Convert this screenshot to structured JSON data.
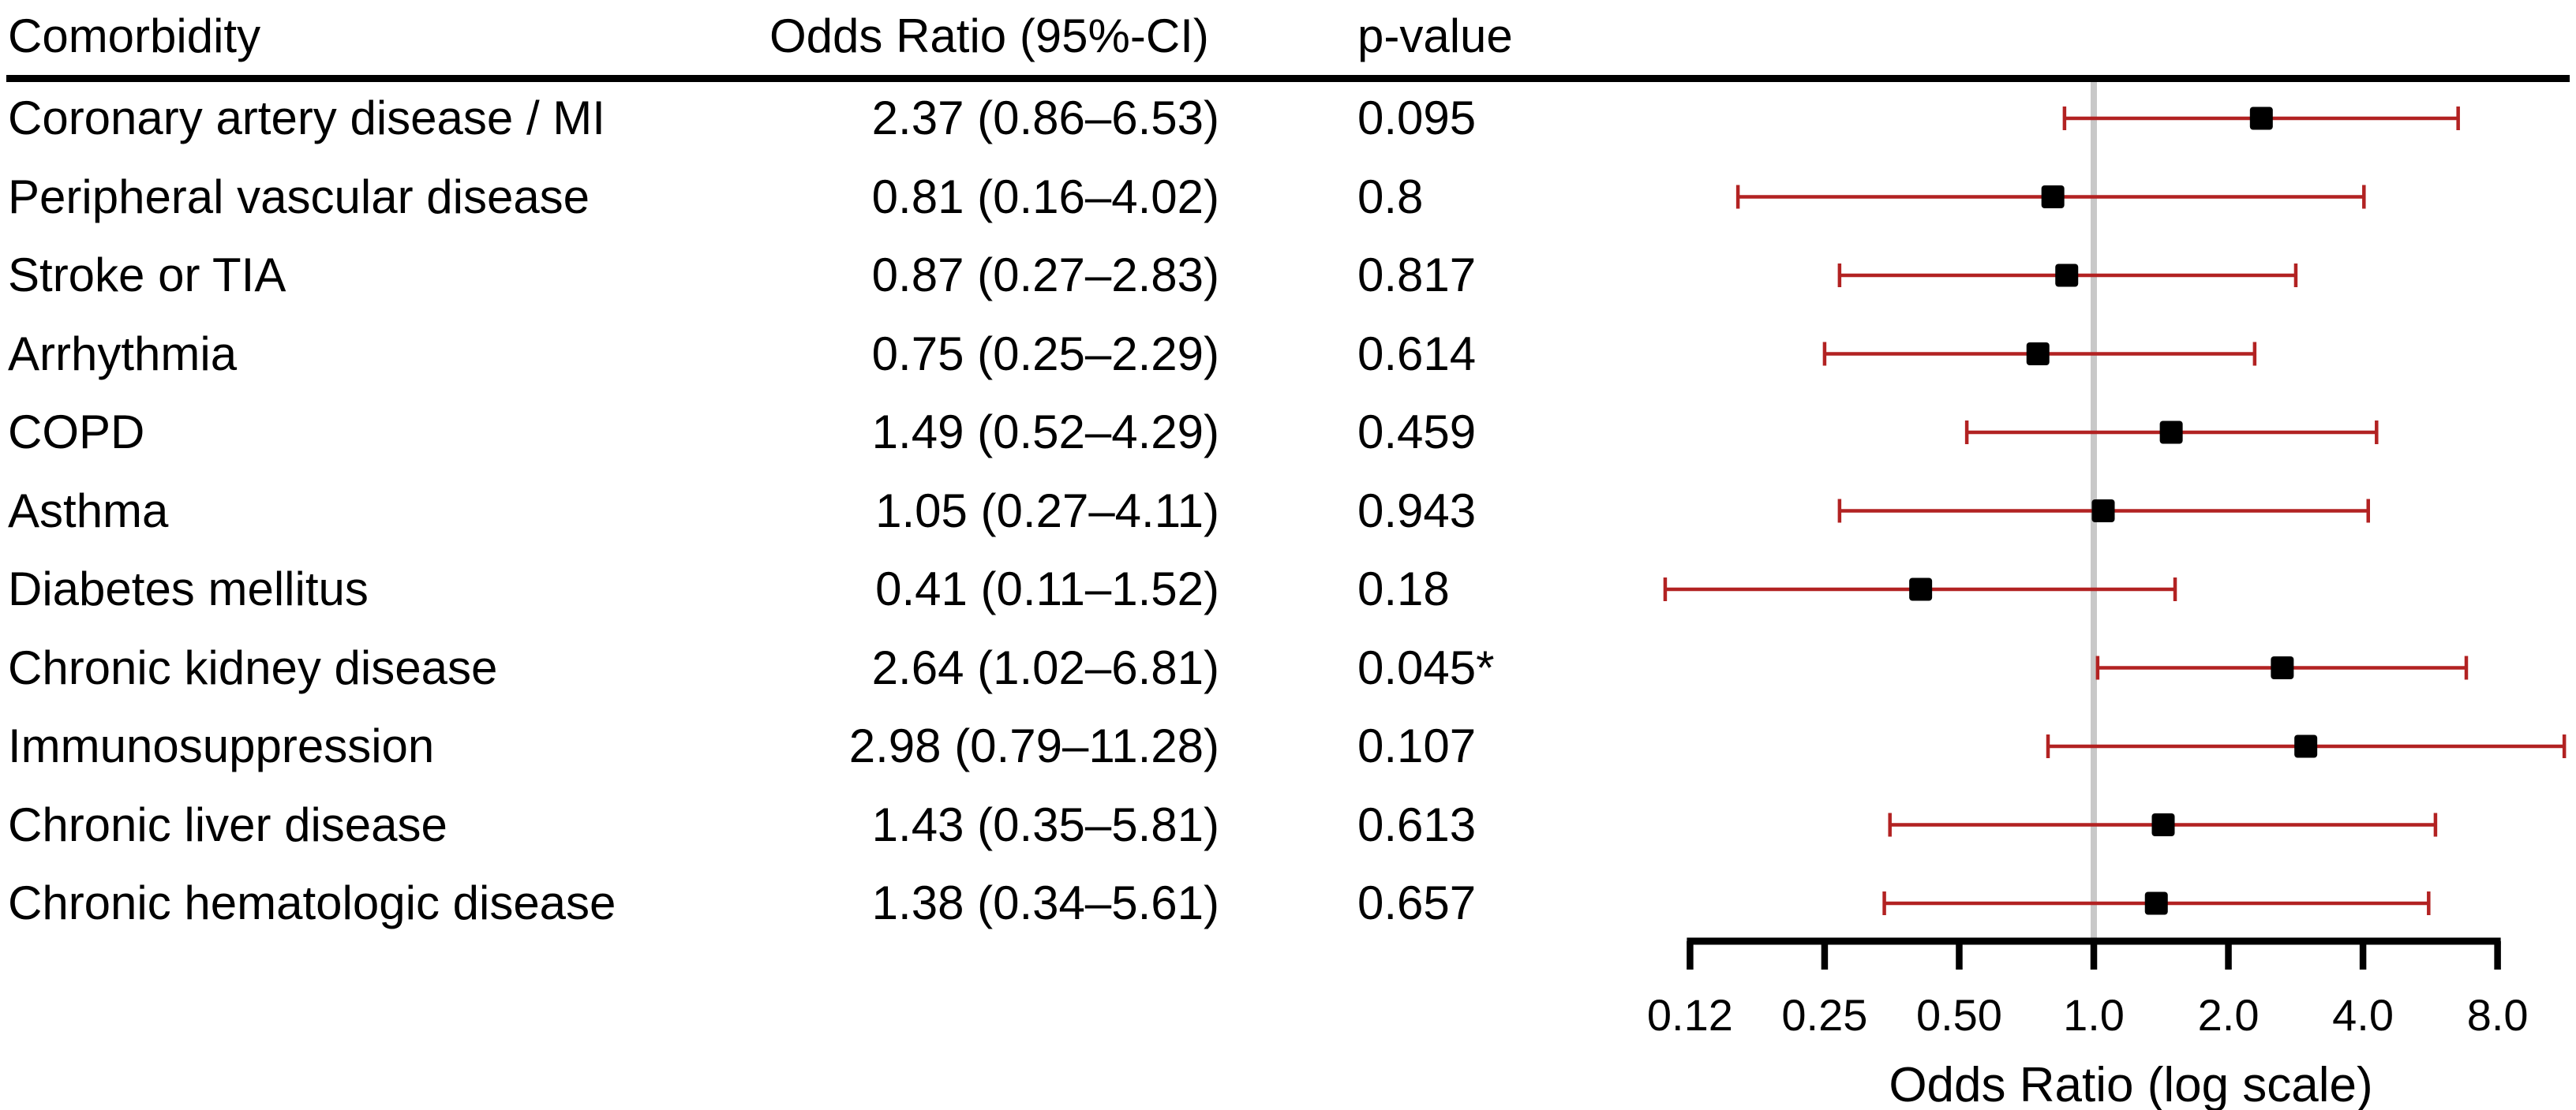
{
  "table": {
    "headers": [
      "Comorbidity",
      "Odds Ratio (95%-CI)",
      "p-value"
    ]
  },
  "chart_data": {
    "type": "forest",
    "title": "",
    "xlabel": "Odds Ratio (log scale)",
    "x_scale": "log2",
    "x_axis_range": [
      0.125,
      8.0
    ],
    "reference_value": 1.0,
    "grid": false,
    "x_ticks": [
      {
        "value": 0.125,
        "label": "0.12"
      },
      {
        "value": 0.25,
        "label": "0.25"
      },
      {
        "value": 0.5,
        "label": "0.50"
      },
      {
        "value": 1.0,
        "label": "1.0"
      },
      {
        "value": 2.0,
        "label": "2.0"
      },
      {
        "value": 4.0,
        "label": "4.0"
      },
      {
        "value": 8.0,
        "label": "8.0"
      }
    ],
    "colors": {
      "ci": "#B22222",
      "marker": "#000000",
      "reference_line": "#C8C8C8",
      "axis": "#000000",
      "text": "#000000"
    },
    "rows": [
      {
        "label": "Coronary artery disease / MI",
        "or": 2.37,
        "ci_low": 0.86,
        "ci_high": 6.53,
        "or_ci_text": "2.37 (0.86–6.53)",
        "p_value": "0.095"
      },
      {
        "label": "Peripheral vascular disease",
        "or": 0.81,
        "ci_low": 0.16,
        "ci_high": 4.02,
        "or_ci_text": "0.81 (0.16–4.02)",
        "p_value": "0.8"
      },
      {
        "label": "Stroke or TIA",
        "or": 0.87,
        "ci_low": 0.27,
        "ci_high": 2.83,
        "or_ci_text": "0.87 (0.27–2.83)",
        "p_value": "0.817"
      },
      {
        "label": "Arrhythmia",
        "or": 0.75,
        "ci_low": 0.25,
        "ci_high": 2.29,
        "or_ci_text": "0.75 (0.25–2.29)",
        "p_value": "0.614"
      },
      {
        "label": "COPD",
        "or": 1.49,
        "ci_low": 0.52,
        "ci_high": 4.29,
        "or_ci_text": "1.49 (0.52–4.29)",
        "p_value": "0.459"
      },
      {
        "label": "Asthma",
        "or": 1.05,
        "ci_low": 0.27,
        "ci_high": 4.11,
        "or_ci_text": "1.05 (0.27–4.11)",
        "p_value": "0.943"
      },
      {
        "label": "Diabetes mellitus",
        "or": 0.41,
        "ci_low": 0.11,
        "ci_high": 1.52,
        "or_ci_text": "0.41 (0.11–1.52)",
        "p_value": "0.18"
      },
      {
        "label": "Chronic kidney disease",
        "or": 2.64,
        "ci_low": 1.02,
        "ci_high": 6.81,
        "or_ci_text": "2.64 (1.02–6.81)",
        "p_value": "0.045*"
      },
      {
        "label": "Immunosuppression",
        "or": 2.98,
        "ci_low": 0.79,
        "ci_high": 11.28,
        "or_ci_text": "2.98 (0.79–11.28)",
        "p_value": "0.107"
      },
      {
        "label": "Chronic liver disease",
        "or": 1.43,
        "ci_low": 0.35,
        "ci_high": 5.81,
        "or_ci_text": "1.43 (0.35–5.81)",
        "p_value": "0.613"
      },
      {
        "label": "Chronic hematologic disease",
        "or": 1.38,
        "ci_low": 0.34,
        "ci_high": 5.61,
        "or_ci_text": "1.38 (0.34–5.61)",
        "p_value": "0.657"
      }
    ]
  }
}
